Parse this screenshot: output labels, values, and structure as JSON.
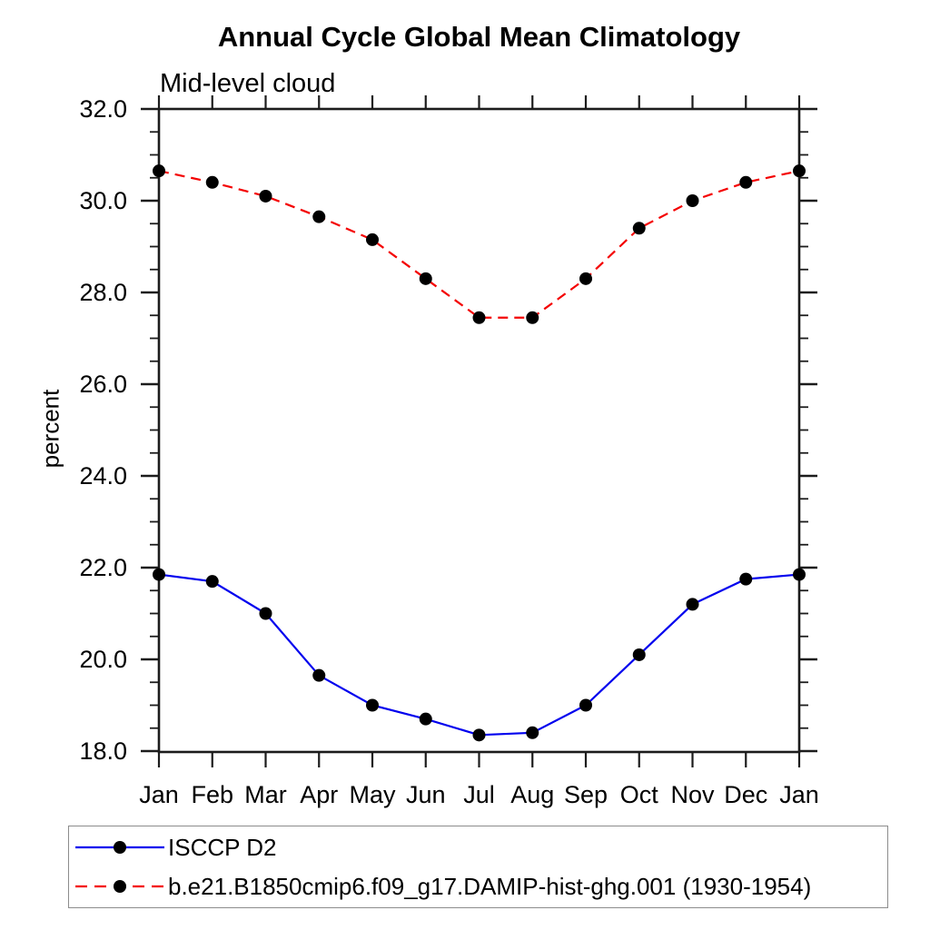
{
  "page": {
    "background": "#ffffff",
    "text_color": "#000000",
    "axis_color": "#1c1c1c",
    "legend_border_color": "#8c8c8c"
  },
  "chart_data": {
    "type": "line",
    "title": "Annual Cycle Global Mean Climatology",
    "subtitle": "Mid-level cloud",
    "xlabel": "",
    "ylabel": "percent",
    "x_tick_labels": [
      "Jan",
      "Feb",
      "Mar",
      "Apr",
      "May",
      "Jun",
      "Jul",
      "Aug",
      "Sep",
      "Oct",
      "Nov",
      "Dec",
      "Jan"
    ],
    "y_major_ticks": [
      18,
      20,
      22,
      24,
      26,
      28,
      30,
      32
    ],
    "y_tick_labels": [
      "18.0",
      "20.0",
      "22.0",
      "24.0",
      "26.0",
      "28.0",
      "30.0",
      "32.0"
    ],
    "y_minor_step": 0.5,
    "ylim": [
      17.9,
      32.1
    ],
    "grid": false,
    "legend_position": "bottom-left-box",
    "marker": "filled-circle",
    "marker_color": "#000000",
    "series": [
      {
        "name": "ISCCP D2",
        "color": "#0000ee",
        "line_style": "solid",
        "values": [
          21.85,
          21.7,
          21.0,
          19.65,
          19.0,
          18.7,
          18.35,
          18.4,
          19.0,
          20.1,
          21.2,
          21.75,
          21.85
        ]
      },
      {
        "name": "b.e21.B1850cmip6.f09_g17.DAMIP-hist-ghg.001 (1930-1954)",
        "color": "#f40000",
        "line_style": "dashed",
        "values": [
          30.65,
          30.4,
          30.1,
          29.65,
          29.15,
          28.3,
          27.45,
          27.45,
          28.3,
          29.4,
          30.0,
          30.4,
          30.65
        ]
      }
    ]
  }
}
